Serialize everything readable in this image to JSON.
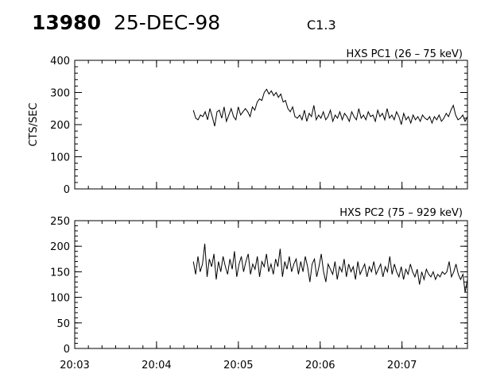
{
  "header": {
    "event_number": "13980",
    "date": "25-DEC-98",
    "goes_class": "C1.3"
  },
  "colors": {
    "background": "#ffffff",
    "foreground": "#000000"
  },
  "chart_data": [
    {
      "type": "line",
      "title": "HXS PC1 (26 – 75 keV)",
      "xlabel": "",
      "ylabel": "CTS/SEC",
      "ylim": [
        0,
        400
      ],
      "yticks": [
        0,
        100,
        200,
        300,
        400
      ],
      "xlim": [
        "20:03",
        "20:07:48"
      ],
      "xticks": [
        "20:03",
        "20:04",
        "20:05",
        "20:06",
        "20:07"
      ],
      "xtick_labels_shown": false,
      "grid": false,
      "series": [
        {
          "x_start": "20:04:27",
          "x_end": "20:07:48",
          "values": [
            245,
            220,
            215,
            230,
            225,
            240,
            215,
            250,
            225,
            195,
            240,
            245,
            220,
            255,
            210,
            230,
            250,
            225,
            215,
            255,
            230,
            240,
            250,
            240,
            225,
            255,
            245,
            270,
            280,
            275,
            300,
            310,
            295,
            305,
            290,
            300,
            285,
            295,
            270,
            275,
            250,
            240,
            255,
            225,
            220,
            230,
            215,
            245,
            210,
            235,
            225,
            260,
            215,
            230,
            220,
            240,
            215,
            225,
            245,
            210,
            230,
            220,
            240,
            215,
            235,
            225,
            210,
            240,
            225,
            215,
            250,
            220,
            230,
            215,
            240,
            225,
            230,
            210,
            245,
            225,
            235,
            215,
            250,
            220,
            230,
            215,
            240,
            225,
            200,
            235,
            215,
            225,
            205,
            230,
            215,
            225,
            210,
            230,
            220,
            215,
            225,
            205,
            225,
            215,
            230,
            210,
            220,
            235,
            225,
            245,
            260,
            230,
            215,
            220,
            230,
            210,
            225
          ]
        }
      ]
    },
    {
      "type": "line",
      "title": "HXS PC2 (75 – 929 keV)",
      "xlabel": "",
      "ylabel": "",
      "ylim": [
        0,
        250
      ],
      "yticks": [
        0,
        50,
        100,
        150,
        200,
        250
      ],
      "xlim": [
        "20:03",
        "20:07:48"
      ],
      "xticks": [
        "20:03",
        "20:04",
        "20:05",
        "20:06",
        "20:07"
      ],
      "xtick_labels_shown": true,
      "grid": false,
      "series": [
        {
          "x_start": "20:04:27",
          "x_end": "20:07:48",
          "values": [
            170,
            145,
            180,
            150,
            165,
            205,
            140,
            175,
            160,
            185,
            135,
            170,
            150,
            180,
            160,
            145,
            175,
            155,
            190,
            140,
            165,
            180,
            150,
            170,
            185,
            145,
            165,
            155,
            180,
            140,
            170,
            160,
            185,
            150,
            165,
            145,
            175,
            160,
            195,
            140,
            170,
            155,
            180,
            150,
            165,
            175,
            145,
            170,
            150,
            180,
            160,
            130,
            165,
            175,
            140,
            160,
            185,
            150,
            130,
            165,
            155,
            145,
            170,
            135,
            160,
            150,
            175,
            140,
            165,
            150,
            160,
            135,
            170,
            145,
            155,
            165,
            140,
            160,
            150,
            170,
            145,
            155,
            165,
            140,
            160,
            150,
            180,
            145,
            165,
            150,
            140,
            160,
            135,
            155,
            145,
            165,
            150,
            140,
            155,
            125,
            150,
            135,
            155,
            145,
            140,
            150,
            135,
            145,
            140,
            150,
            145,
            150,
            170,
            140,
            150,
            165,
            145,
            135,
            145,
            110,
            135
          ]
        }
      ]
    }
  ]
}
